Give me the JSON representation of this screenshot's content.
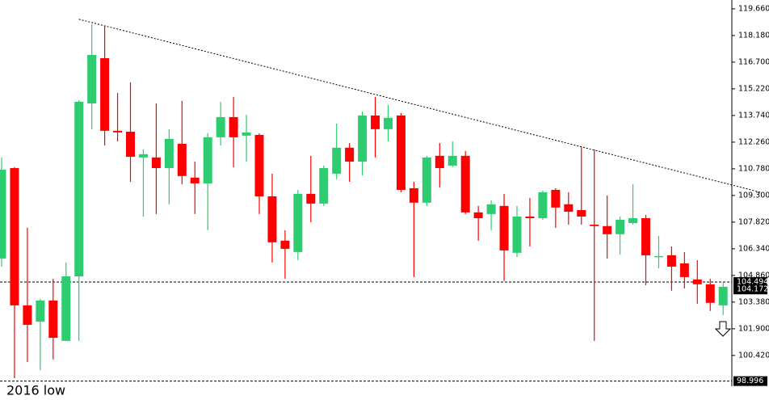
{
  "chart_data": {
    "type": "candlestick",
    "categories": [
      null,
      null,
      null,
      null,
      null,
      null,
      null,
      null,
      null,
      null,
      null,
      null,
      null,
      null,
      null,
      null,
      null,
      null,
      null,
      null,
      null,
      null,
      null,
      null,
      null,
      null,
      null,
      null,
      null,
      null,
      null,
      null,
      null,
      null,
      null,
      null,
      null,
      null,
      null,
      null,
      null,
      null,
      null,
      null,
      null,
      null,
      null,
      null,
      null,
      null,
      null,
      null,
      null,
      null,
      null,
      null,
      null
    ],
    "open": [
      105.8,
      110.82,
      103.2,
      102.3,
      103.47,
      101.23,
      104.81,
      114.41,
      116.92,
      112.89,
      112.84,
      111.41,
      111.41,
      110.82,
      112.17,
      110.29,
      109.97,
      112.53,
      113.65,
      112.62,
      112.66,
      109.25,
      106.79,
      106.16,
      109.39,
      108.85,
      110.51,
      111.95,
      111.18,
      113.74,
      112.98,
      113.74,
      109.7,
      108.9,
      111.5,
      110.96,
      111.5,
      108.36,
      108.27,
      108.72,
      106.12,
      108.13,
      108.04,
      109.61,
      108.81,
      108.49,
      107.68,
      107.6,
      107.15,
      107.77,
      108.04,
      105.89,
      105.98,
      105.53,
      104.64,
      104.37,
      103.2
    ],
    "high": [
      111.41,
      110.87,
      107.51,
      103.56,
      104.68,
      105.58,
      114.59,
      118.81,
      118.72,
      114.99,
      115.58,
      111.86,
      114.41,
      112.98,
      114.55,
      111.18,
      112.75,
      114.5,
      114.77,
      113.78,
      112.75,
      110.51,
      107.37,
      109.61,
      111.5,
      110.96,
      113.29,
      112.21,
      113.96,
      114.77,
      114.32,
      113.87,
      110.06,
      111.5,
      112.21,
      112.3,
      111.77,
      108.72,
      109.03,
      109.39,
      108.72,
      109.16,
      109.57,
      109.7,
      109.48,
      111.99,
      111.86,
      109.3,
      108.13,
      109.93,
      108.22,
      107.06,
      106.47,
      106.16,
      105.71,
      104.68,
      104.46
    ],
    "low": [
      105.35,
      99.16,
      100.06,
      99.61,
      100.2,
      101.23,
      101.23,
      112.98,
      112.08,
      112.3,
      110.06,
      108.13,
      108.27,
      108.81,
      109.93,
      108.27,
      107.37,
      112.08,
      110.87,
      111.18,
      108.27,
      105.58,
      104.68,
      105.71,
      107.82,
      108.72,
      110.2,
      110.06,
      110.42,
      111.41,
      112.3,
      109.48,
      104.77,
      108.72,
      109.75,
      110.87,
      108.27,
      106.79,
      107.37,
      104.56,
      105.89,
      106.47,
      107.95,
      107.5,
      107.68,
      107.68,
      101.23,
      105.8,
      106.02,
      107.68,
      104.32,
      105.26,
      104.01,
      104.14,
      103.29,
      102.89,
      102.66
    ],
    "close": [
      110.73,
      103.2,
      102.12,
      103.47,
      101.4,
      104.81,
      114.5,
      117.1,
      112.89,
      112.8,
      111.45,
      111.59,
      110.82,
      112.44,
      110.38,
      109.97,
      112.53,
      113.65,
      112.53,
      112.8,
      109.25,
      106.7,
      106.34,
      109.39,
      108.85,
      110.82,
      111.95,
      111.18,
      113.74,
      112.98,
      113.61,
      109.61,
      108.9,
      111.41,
      110.82,
      111.5,
      108.36,
      108.04,
      108.81,
      106.25,
      108.13,
      108.04,
      109.48,
      108.63,
      108.4,
      108.13,
      107.6,
      107.15,
      107.95,
      108.04,
      105.98,
      105.94,
      105.35,
      104.77,
      104.37,
      103.34,
      104.23
    ],
    "up_color": "#2ecc71",
    "down_color": "#ff0000",
    "ylim": [
      98.71,
      120.15
    ],
    "yticks": [
      {
        "value": 119.66,
        "label": "119.660"
      },
      {
        "value": 118.18,
        "label": "118.180"
      },
      {
        "value": 116.7,
        "label": "116.700"
      },
      {
        "value": 115.22,
        "label": "115.220"
      },
      {
        "value": 113.74,
        "label": "113.740"
      },
      {
        "value": 112.26,
        "label": "112.260"
      },
      {
        "value": 110.78,
        "label": "110.780"
      },
      {
        "value": 109.3,
        "label": "109.300"
      },
      {
        "value": 107.82,
        "label": "107.820"
      },
      {
        "value": 106.34,
        "label": "106.340"
      },
      {
        "value": 104.86,
        "label": "104.860"
      },
      {
        "value": 103.38,
        "label": "103.380"
      },
      {
        "value": 101.9,
        "label": "101.900"
      },
      {
        "value": 100.42,
        "label": "100.420"
      }
    ],
    "levels": [
      {
        "value": 104.494,
        "label": "104.494"
      },
      {
        "value": 98.996,
        "label": "98.996"
      }
    ],
    "current_price": {
      "value": 104.172,
      "label": "104.172"
    },
    "trendline": {
      "x": [
        6,
        59
      ],
      "values": [
        119.08,
        109.46
      ]
    },
    "annotation": "2016 low"
  }
}
